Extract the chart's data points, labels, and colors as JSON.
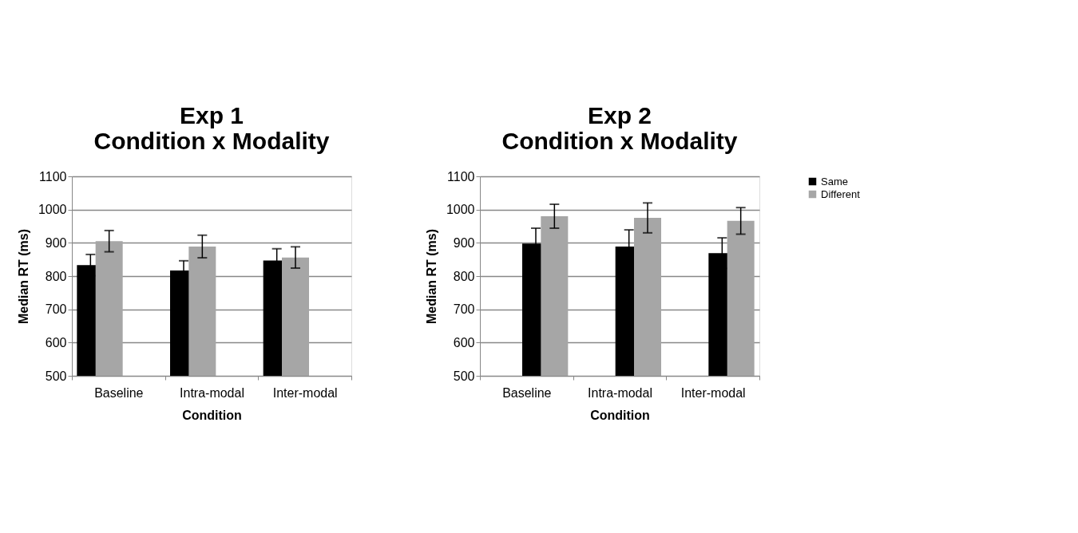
{
  "chart_data": [
    {
      "type": "bar",
      "title": "Exp 1\nCondition x Modality",
      "xlabel": "Condition",
      "ylabel": "Median RT (ms)",
      "categories": [
        "Baseline",
        "Intra-modal",
        "Inter-modal"
      ],
      "series": [
        {
          "color": "#000000",
          "values": [
            833,
            817,
            847
          ],
          "errors": [
            32,
            29,
            35
          ]
        },
        {
          "color": "#a6a6a6",
          "values": [
            905,
            889,
            856
          ],
          "errors": [
            32,
            34,
            32
          ]
        }
      ],
      "ylim": [
        500,
        1100
      ],
      "yticks": [
        500,
        600,
        700,
        800,
        900,
        1000,
        1100
      ],
      "grid": "y"
    },
    {
      "type": "bar",
      "title": "Exp 2\nCondition x Modality",
      "xlabel": "Condition",
      "ylabel": "Median RT (ms)",
      "categories": [
        "Baseline",
        "Intra-modal",
        "Inter-modal"
      ],
      "series": [
        {
          "name": "Same",
          "color": "#000000",
          "values": [
            898,
            889,
            869
          ],
          "errors": [
            46,
            50,
            46
          ]
        },
        {
          "name": "Different",
          "color": "#a6a6a6",
          "values": [
            980,
            975,
            966
          ],
          "errors": [
            36,
            45,
            40
          ]
        }
      ],
      "ylim": [
        500,
        1100
      ],
      "yticks": [
        500,
        600,
        700,
        800,
        900,
        1000,
        1100
      ],
      "grid": "y",
      "legend": "top right"
    }
  ]
}
